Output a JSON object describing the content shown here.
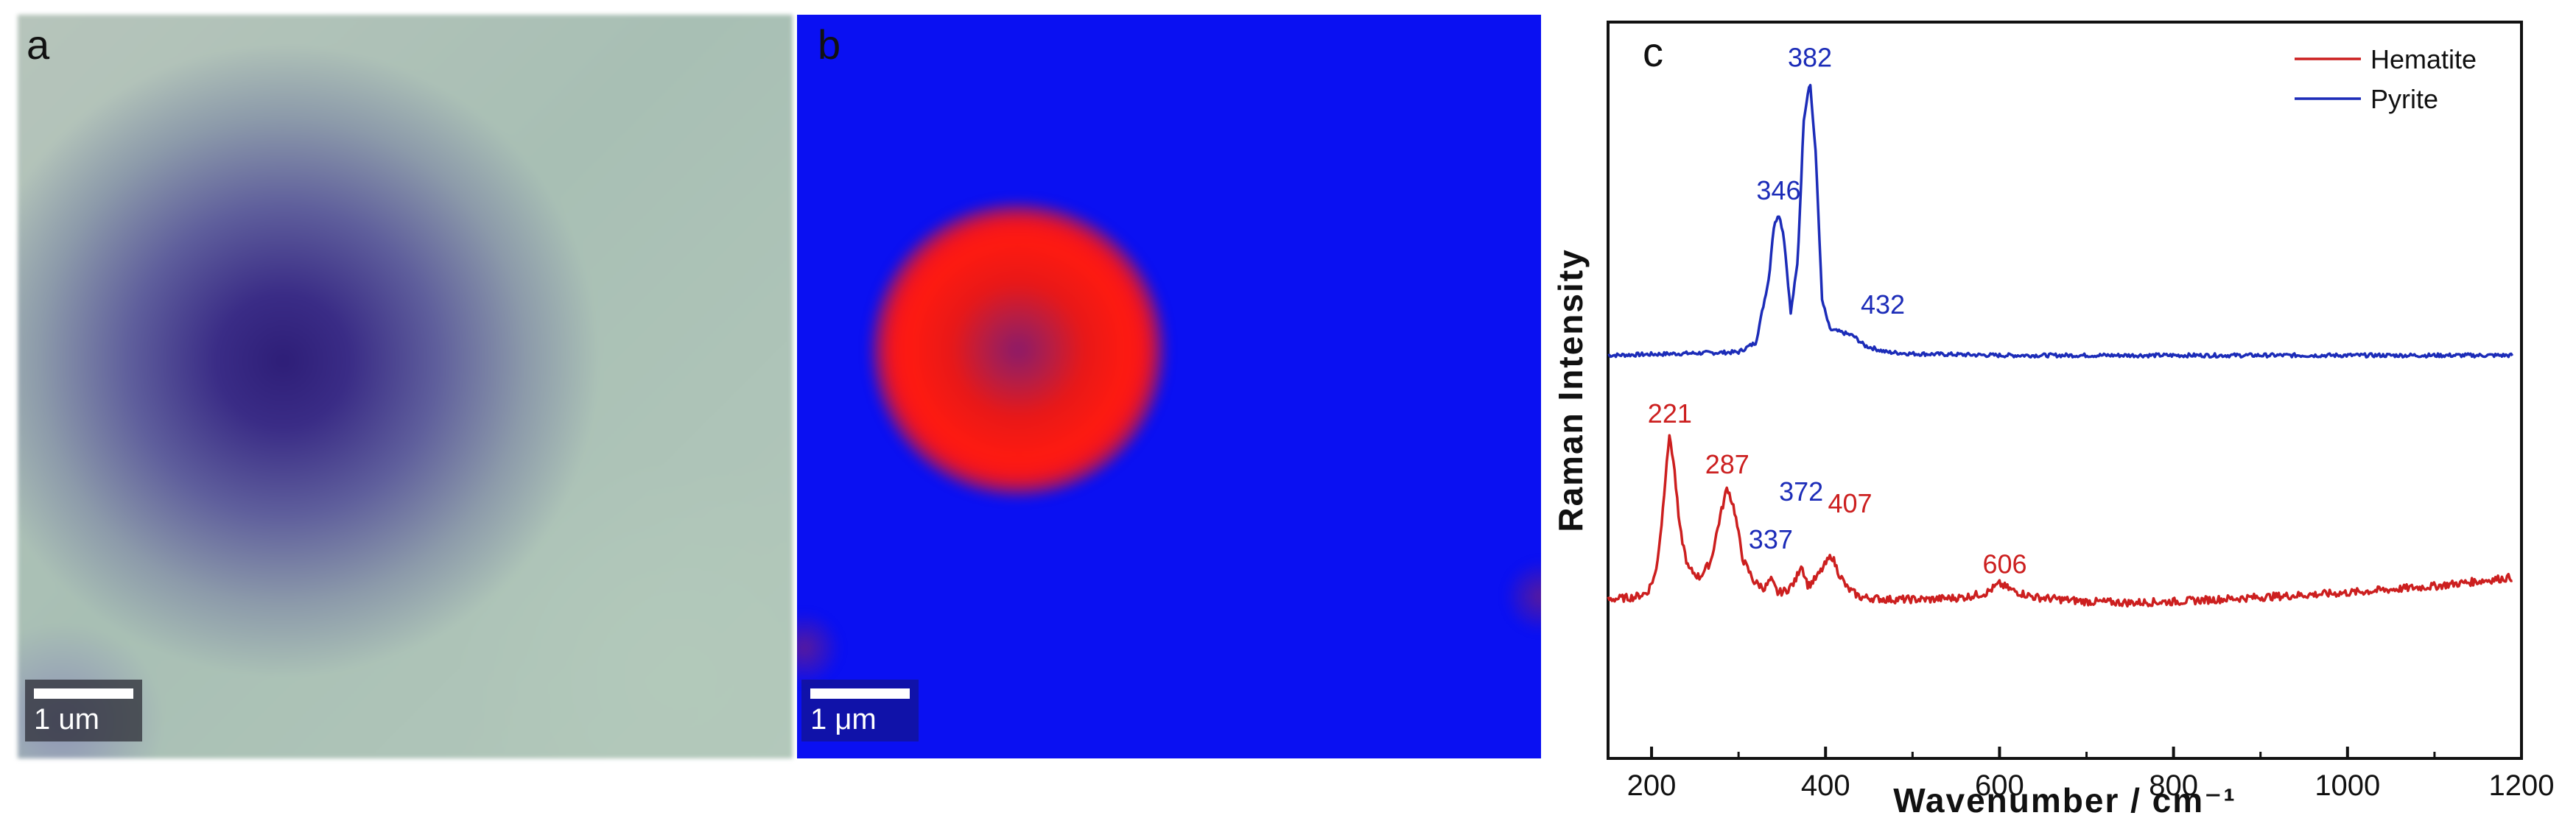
{
  "panel_a": {
    "letter": "a",
    "scale_label": "1 um"
  },
  "panel_b": {
    "letter": "b",
    "scale_label": "1 μm"
  },
  "colors": {
    "hematite": "#cc1f1f",
    "pyrite": "#1c2cb8",
    "map_background": "#0a10f2",
    "map_particle": "#ff1a10"
  },
  "chart_data": {
    "type": "line",
    "panel_letter": "c",
    "xlabel": "Wavenumber / cm⁻¹",
    "ylabel": "Raman Intensity",
    "xlim": [
      150,
      1200
    ],
    "xticks": [
      200,
      400,
      600,
      800,
      1000,
      1200
    ],
    "y_ticks_labeled": false,
    "legend": {
      "position": "top-right",
      "entries": [
        "Hematite",
        "Pyrite"
      ]
    },
    "series": [
      {
        "name": "Pyrite",
        "color": "#1c2cb8",
        "x": [
          150,
          300,
          320,
          335,
          340,
          346,
          352,
          360,
          368,
          375,
          382,
          389,
          396,
          405,
          420,
          432,
          445,
          470,
          500,
          600,
          800,
          1000,
          1190
        ],
        "y": [
          0.01,
          0.02,
          0.05,
          0.25,
          0.4,
          0.45,
          0.38,
          0.14,
          0.3,
          0.74,
          0.86,
          0.62,
          0.18,
          0.09,
          0.08,
          0.07,
          0.04,
          0.02,
          0.015,
          0.01,
          0.01,
          0.01,
          0.01
        ],
        "peak_labels": [
          346,
          382,
          432
        ]
      },
      {
        "name": "Hematite",
        "color": "#cc1f1f",
        "x": [
          150,
          180,
          195,
          205,
          212,
          218,
          221,
          226,
          232,
          242,
          255,
          268,
          278,
          287,
          295,
          305,
          318,
          330,
          337,
          345,
          355,
          365,
          372,
          380,
          390,
          400,
          407,
          415,
          425,
          440,
          470,
          520,
          560,
          585,
          600,
          615,
          640,
          700,
          750,
          800,
          900,
          1000,
          1100,
          1190
        ],
        "y": [
          0.02,
          0.03,
          0.05,
          0.14,
          0.38,
          0.68,
          0.76,
          0.62,
          0.35,
          0.16,
          0.12,
          0.19,
          0.38,
          0.53,
          0.43,
          0.2,
          0.1,
          0.07,
          0.11,
          0.05,
          0.06,
          0.1,
          0.18,
          0.08,
          0.12,
          0.18,
          0.22,
          0.14,
          0.07,
          0.03,
          0.02,
          0.02,
          0.03,
          0.05,
          0.09,
          0.06,
          0.03,
          0.01,
          0.005,
          0.01,
          0.03,
          0.05,
          0.08,
          0.12
        ],
        "peak_labels": [
          221,
          287,
          407,
          606
        ]
      }
    ],
    "annotations": [
      {
        "text": "337",
        "x": 337,
        "color": "#1c2cb8"
      },
      {
        "text": "372",
        "x": 372,
        "color": "#1c2cb8"
      }
    ]
  }
}
